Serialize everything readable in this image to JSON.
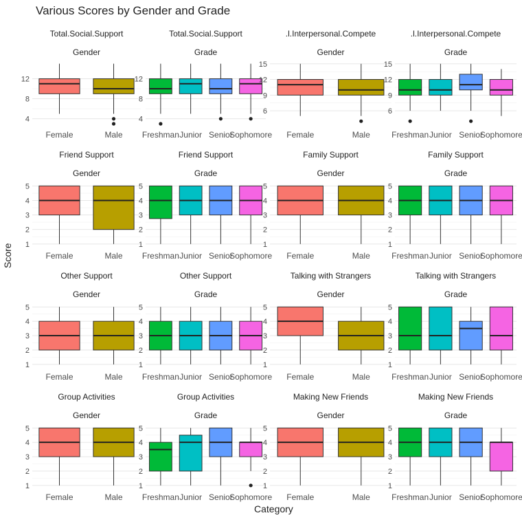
{
  "title": "Various Scores by Gender and Grade",
  "xlabel": "Category",
  "ylabel": "Score",
  "colors": {
    "Female": "#F8766D",
    "Male": "#B79F00",
    "Freshman": "#00BA38",
    "Junior": "#00BFC4",
    "Senior": "#619CFF",
    "Sophomore": "#F564E3"
  },
  "chart_data": [
    {
      "type": "box",
      "facet_title": "Total.Social.Support",
      "facet_subtitle": "Gender",
      "categories": [
        "Female",
        "Male"
      ],
      "ylim": [
        3,
        15.5
      ],
      "yticks": [
        4,
        8,
        12
      ],
      "boxes": [
        {
          "min": 5,
          "q1": 9,
          "median": 11,
          "q3": 12,
          "max": 15,
          "outliers": []
        },
        {
          "min": 5,
          "q1": 9,
          "median": 10,
          "q3": 12,
          "max": 15,
          "outliers": [
            3,
            4
          ]
        }
      ]
    },
    {
      "type": "box",
      "facet_title": "Total.Social.Support",
      "facet_subtitle": "Grade",
      "categories": [
        "Freshman",
        "Junior",
        "Senior",
        "Sophomore"
      ],
      "ylim": [
        3,
        15.5
      ],
      "yticks": [
        4,
        8,
        12
      ],
      "boxes": [
        {
          "min": 5,
          "q1": 9,
          "median": 10,
          "q3": 12,
          "max": 15,
          "outliers": [
            3
          ]
        },
        {
          "min": 5,
          "q1": 9,
          "median": 11,
          "q3": 12,
          "max": 15,
          "outliers": []
        },
        {
          "min": 5,
          "q1": 9,
          "median": 10,
          "q3": 12,
          "max": 15,
          "outliers": [
            4
          ]
        },
        {
          "min": 5,
          "q1": 9,
          "median": 11,
          "q3": 12,
          "max": 15,
          "outliers": [
            4
          ]
        }
      ]
    },
    {
      "type": "box",
      "facet_title": ".l.Interpersonal.Compete",
      "facet_subtitle": "Gender",
      "categories": [
        "Female",
        "Male"
      ],
      "ylim": [
        3.5,
        15.5
      ],
      "yticks": [
        6,
        9,
        12,
        15
      ],
      "boxes": [
        {
          "min": 5,
          "q1": 9,
          "median": 11,
          "q3": 12,
          "max": 15,
          "outliers": []
        },
        {
          "min": 5,
          "q1": 9,
          "median": 10,
          "q3": 12,
          "max": 15,
          "outliers": [
            4
          ]
        }
      ]
    },
    {
      "type": "box",
      "facet_title": ".l.Interpersonal.Compete",
      "facet_subtitle": "Grade",
      "categories": [
        "Freshman",
        "Junior",
        "Senior",
        "Sophomore"
      ],
      "ylim": [
        3.5,
        15.5
      ],
      "yticks": [
        6,
        9,
        12,
        15
      ],
      "boxes": [
        {
          "min": 6,
          "q1": 9,
          "median": 10,
          "q3": 12,
          "max": 15,
          "outliers": [
            4
          ]
        },
        {
          "min": 6,
          "q1": 9,
          "median": 10,
          "q3": 12,
          "max": 15,
          "outliers": []
        },
        {
          "min": 6,
          "q1": 10,
          "median": 11,
          "q3": 13,
          "max": 15,
          "outliers": [
            4
          ]
        },
        {
          "min": 5,
          "q1": 9,
          "median": 10,
          "q3": 12,
          "max": 14,
          "outliers": []
        }
      ]
    },
    {
      "type": "box",
      "facet_title": "Friend Support",
      "facet_subtitle": "Gender",
      "categories": [
        "Female",
        "Male"
      ],
      "ylim": [
        0.8,
        5.3
      ],
      "yticks": [
        1,
        2,
        3,
        4,
        5
      ],
      "boxes": [
        {
          "min": 1,
          "q1": 3,
          "median": 4,
          "q3": 5,
          "max": 5,
          "outliers": []
        },
        {
          "min": 1,
          "q1": 2,
          "median": 4,
          "q3": 5,
          "max": 5,
          "outliers": []
        }
      ]
    },
    {
      "type": "box",
      "facet_title": "Friend Support",
      "facet_subtitle": "Grade",
      "categories": [
        "Freshman",
        "Junior",
        "Senior",
        "Sophomore"
      ],
      "ylim": [
        0.8,
        5.3
      ],
      "yticks": [
        1,
        2,
        3,
        4,
        5
      ],
      "boxes": [
        {
          "min": 1,
          "q1": 2.75,
          "median": 4,
          "q3": 5,
          "max": 5,
          "outliers": []
        },
        {
          "min": 1,
          "q1": 3,
          "median": 4,
          "q3": 5,
          "max": 5,
          "outliers": []
        },
        {
          "min": 1,
          "q1": 3,
          "median": 4,
          "q3": 5,
          "max": 5,
          "outliers": []
        },
        {
          "min": 1,
          "q1": 3,
          "median": 4,
          "q3": 5,
          "max": 5,
          "outliers": []
        }
      ]
    },
    {
      "type": "box",
      "facet_title": "Family Support",
      "facet_subtitle": "Gender",
      "categories": [
        "Female",
        "Male"
      ],
      "ylim": [
        0.8,
        5.3
      ],
      "yticks": [
        1,
        2,
        3,
        4,
        5
      ],
      "boxes": [
        {
          "min": 1,
          "q1": 3,
          "median": 4,
          "q3": 5,
          "max": 5,
          "outliers": []
        },
        {
          "min": 1,
          "q1": 3,
          "median": 4,
          "q3": 5,
          "max": 5,
          "outliers": []
        }
      ]
    },
    {
      "type": "box",
      "facet_title": "Family Support",
      "facet_subtitle": "Grade",
      "categories": [
        "Freshman",
        "Junior",
        "Senior",
        "Sophomore"
      ],
      "ylim": [
        0.8,
        5.3
      ],
      "yticks": [
        1,
        2,
        3,
        4,
        5
      ],
      "boxes": [
        {
          "min": 1,
          "q1": 3,
          "median": 4,
          "q3": 5,
          "max": 5,
          "outliers": []
        },
        {
          "min": 1,
          "q1": 3,
          "median": 4,
          "q3": 5,
          "max": 5,
          "outliers": []
        },
        {
          "min": 1,
          "q1": 3,
          "median": 4,
          "q3": 5,
          "max": 5,
          "outliers": []
        },
        {
          "min": 1,
          "q1": 3,
          "median": 4,
          "q3": 5,
          "max": 5,
          "outliers": []
        }
      ]
    },
    {
      "type": "box",
      "facet_title": "Other Support",
      "facet_subtitle": "Gender",
      "categories": [
        "Female",
        "Male"
      ],
      "ylim": [
        0.8,
        5.3
      ],
      "yticks": [
        1,
        2,
        3,
        4,
        5
      ],
      "boxes": [
        {
          "min": 1,
          "q1": 2,
          "median": 3,
          "q3": 4,
          "max": 5,
          "outliers": []
        },
        {
          "min": 1,
          "q1": 2,
          "median": 3,
          "q3": 4,
          "max": 5,
          "outliers": []
        }
      ]
    },
    {
      "type": "box",
      "facet_title": "Other Support",
      "facet_subtitle": "Grade",
      "categories": [
        "Freshman",
        "Junior",
        "Senior",
        "Sophomore"
      ],
      "ylim": [
        0.8,
        5.3
      ],
      "yticks": [
        1,
        2,
        3,
        4,
        5
      ],
      "boxes": [
        {
          "min": 1,
          "q1": 2,
          "median": 3,
          "q3": 4,
          "max": 5,
          "outliers": []
        },
        {
          "min": 1,
          "q1": 2,
          "median": 3,
          "q3": 4,
          "max": 5,
          "outliers": []
        },
        {
          "min": 1,
          "q1": 2,
          "median": 3,
          "q3": 4,
          "max": 5,
          "outliers": []
        },
        {
          "min": 1,
          "q1": 2,
          "median": 3,
          "q3": 4,
          "max": 5,
          "outliers": []
        }
      ]
    },
    {
      "type": "box",
      "facet_title": "Talking with Strangers",
      "facet_subtitle": "Gender",
      "categories": [
        "Female",
        "Male"
      ],
      "ylim": [
        0.8,
        5.3
      ],
      "yticks": [
        1,
        2,
        3,
        4,
        5
      ],
      "boxes": [
        {
          "min": 1,
          "q1": 3,
          "median": 4,
          "q3": 5,
          "max": 5,
          "outliers": []
        },
        {
          "min": 1,
          "q1": 2,
          "median": 3,
          "q3": 4,
          "max": 5,
          "outliers": []
        }
      ]
    },
    {
      "type": "box",
      "facet_title": "Talking with Strangers",
      "facet_subtitle": "Grade",
      "categories": [
        "Freshman",
        "Junior",
        "Senior",
        "Sophomore"
      ],
      "ylim": [
        0.8,
        5.3
      ],
      "yticks": [
        1,
        2,
        3,
        4,
        5
      ],
      "boxes": [
        {
          "min": 1,
          "q1": 2,
          "median": 3,
          "q3": 5,
          "max": 5,
          "outliers": []
        },
        {
          "min": 1,
          "q1": 2,
          "median": 3,
          "q3": 5,
          "max": 5,
          "outliers": []
        },
        {
          "min": 1,
          "q1": 2,
          "median": 3.5,
          "q3": 4,
          "max": 5,
          "outliers": []
        },
        {
          "min": 1,
          "q1": 2,
          "median": 3,
          "q3": 5,
          "max": 5,
          "outliers": []
        }
      ]
    },
    {
      "type": "box",
      "facet_title": "Group Activities",
      "facet_subtitle": "Gender",
      "categories": [
        "Female",
        "Male"
      ],
      "ylim": [
        0.8,
        5.3
      ],
      "yticks": [
        1,
        2,
        3,
        4,
        5
      ],
      "boxes": [
        {
          "min": 1,
          "q1": 3,
          "median": 4,
          "q3": 5,
          "max": 5,
          "outliers": []
        },
        {
          "min": 1,
          "q1": 3,
          "median": 4,
          "q3": 5,
          "max": 5,
          "outliers": []
        }
      ]
    },
    {
      "type": "box",
      "facet_title": "Group Activities",
      "facet_subtitle": "Grade",
      "categories": [
        "Freshman",
        "Junior",
        "Senior",
        "Sophomore"
      ],
      "ylim": [
        0.8,
        5.3
      ],
      "yticks": [
        1,
        2,
        3,
        4,
        5
      ],
      "boxes": [
        {
          "min": 1,
          "q1": 2,
          "median": 3.5,
          "q3": 4,
          "max": 5,
          "outliers": []
        },
        {
          "min": 1,
          "q1": 2,
          "median": 4,
          "q3": 4.5,
          "max": 5,
          "outliers": []
        },
        {
          "min": 1,
          "q1": 3,
          "median": 4,
          "q3": 5,
          "max": 5,
          "outliers": []
        },
        {
          "min": 2,
          "q1": 3,
          "median": 4,
          "q3": 4,
          "max": 5,
          "outliers": [
            1
          ]
        }
      ]
    },
    {
      "type": "box",
      "facet_title": "Making New Friends",
      "facet_subtitle": "Gender",
      "categories": [
        "Female",
        "Male"
      ],
      "ylim": [
        0.8,
        5.3
      ],
      "yticks": [
        1,
        2,
        3,
        4,
        5
      ],
      "boxes": [
        {
          "min": 1,
          "q1": 3,
          "median": 4,
          "q3": 5,
          "max": 5,
          "outliers": []
        },
        {
          "min": 1,
          "q1": 3,
          "median": 4,
          "q3": 5,
          "max": 5,
          "outliers": []
        }
      ]
    },
    {
      "type": "box",
      "facet_title": "Making New Friends",
      "facet_subtitle": "Grade",
      "categories": [
        "Freshman",
        "Junior",
        "Senior",
        "Sophomore"
      ],
      "ylim": [
        0.8,
        5.3
      ],
      "yticks": [
        1,
        2,
        3,
        4,
        5
      ],
      "boxes": [
        {
          "min": 1,
          "q1": 3,
          "median": 4,
          "q3": 5,
          "max": 5,
          "outliers": []
        },
        {
          "min": 1,
          "q1": 3,
          "median": 4,
          "q3": 5,
          "max": 5,
          "outliers": []
        },
        {
          "min": 1,
          "q1": 3,
          "median": 4,
          "q3": 5,
          "max": 5,
          "outliers": []
        },
        {
          "min": 1,
          "q1": 2,
          "median": 4,
          "q3": 4,
          "max": 5,
          "outliers": []
        }
      ]
    }
  ]
}
